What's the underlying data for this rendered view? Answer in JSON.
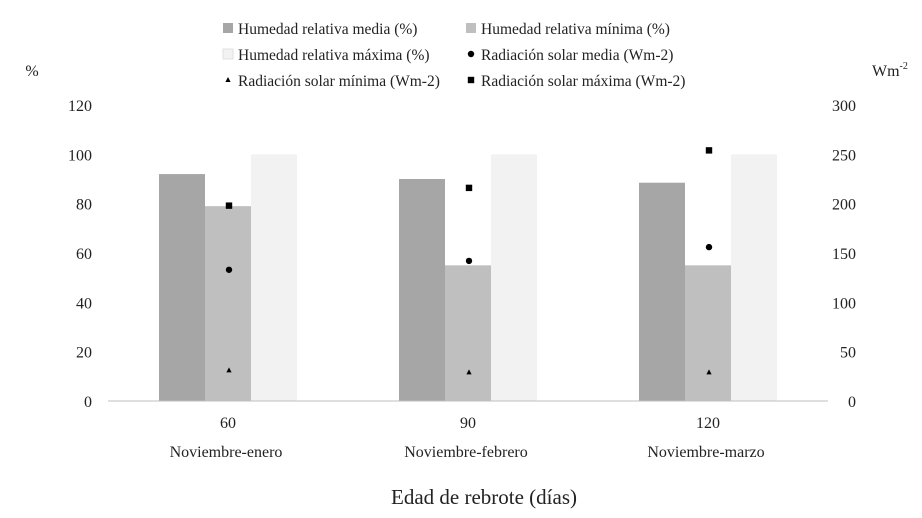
{
  "chart_data": {
    "type": "bar",
    "categories": [
      "60",
      "90",
      "120"
    ],
    "category_sublabels": [
      "Noviembre-enero",
      "Noviembre-febrero",
      "Noviembre-marzo"
    ],
    "xlabel": "Edad de rebrote (días)",
    "ylabel_left": "%",
    "ylabel_right": "Wm",
    "ylabel_right_sup": "-2",
    "ylim_left": [
      0,
      120
    ],
    "yticks_left": [
      "0",
      "20",
      "40",
      "60",
      "80",
      "100",
      "120"
    ],
    "ylim_right": [
      0,
      300
    ],
    "yticks_right": [
      "0",
      "50",
      "100",
      "150",
      "200",
      "250",
      "300"
    ],
    "grid": false,
    "legend_position": "top",
    "bar_series": [
      {
        "name": "Humedad relativa media (%)",
        "values": [
          92,
          90,
          88.5
        ],
        "color": "#a6a6a6",
        "axis": "left"
      },
      {
        "name": "Humedad relativa mínima (%)",
        "values": [
          79,
          55,
          55
        ],
        "color": "#bfbfbf",
        "axis": "left"
      },
      {
        "name": "Humedad relativa máxima (%)",
        "values": [
          100,
          100,
          100
        ],
        "color": "#f2f2f2",
        "axis": "left"
      }
    ],
    "point_series": [
      {
        "name": "Radiación solar media (Wm-2)",
        "values": [
          133,
          142,
          156
        ],
        "marker": "circle",
        "color": "#000000",
        "axis": "right"
      },
      {
        "name": "Radiación solar mínima (Wm-2)",
        "values": [
          31,
          29,
          29
        ],
        "marker": "triangle",
        "color": "#000000",
        "axis": "right"
      },
      {
        "name": "Radiación solar máxima (Wm-2)",
        "values": [
          198,
          216,
          254
        ],
        "marker": "square",
        "color": "#000000",
        "axis": "right"
      }
    ]
  }
}
